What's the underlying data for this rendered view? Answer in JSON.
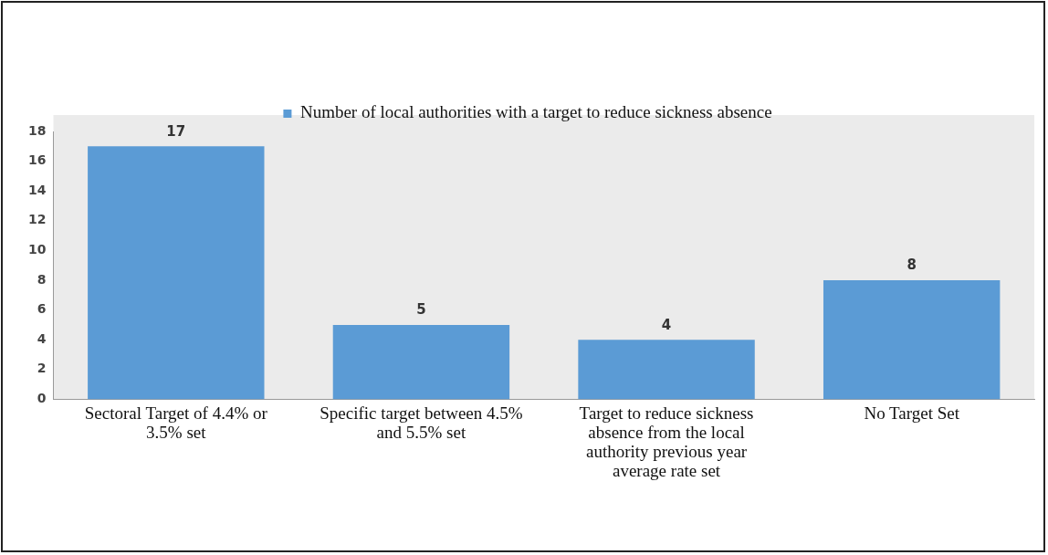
{
  "chart_data": {
    "type": "bar",
    "categories": [
      "Sectoral Target of 4.4% or 3.5% set",
      "Specific target between 4.5% and 5.5% set",
      "Target to reduce sickness absence from the local authority previous year average rate set",
      "No Target Set"
    ],
    "series": [
      {
        "name": "Number of local authorities with a target to reduce sickness absence",
        "color": "#5b9bd5",
        "values": [
          17,
          5,
          4,
          8
        ]
      }
    ],
    "ylim": [
      0,
      18
    ],
    "yticks": [
      0,
      2,
      4,
      6,
      8,
      10,
      12,
      14,
      16,
      18
    ],
    "grid": false,
    "legend": "top",
    "data_labels": true
  }
}
